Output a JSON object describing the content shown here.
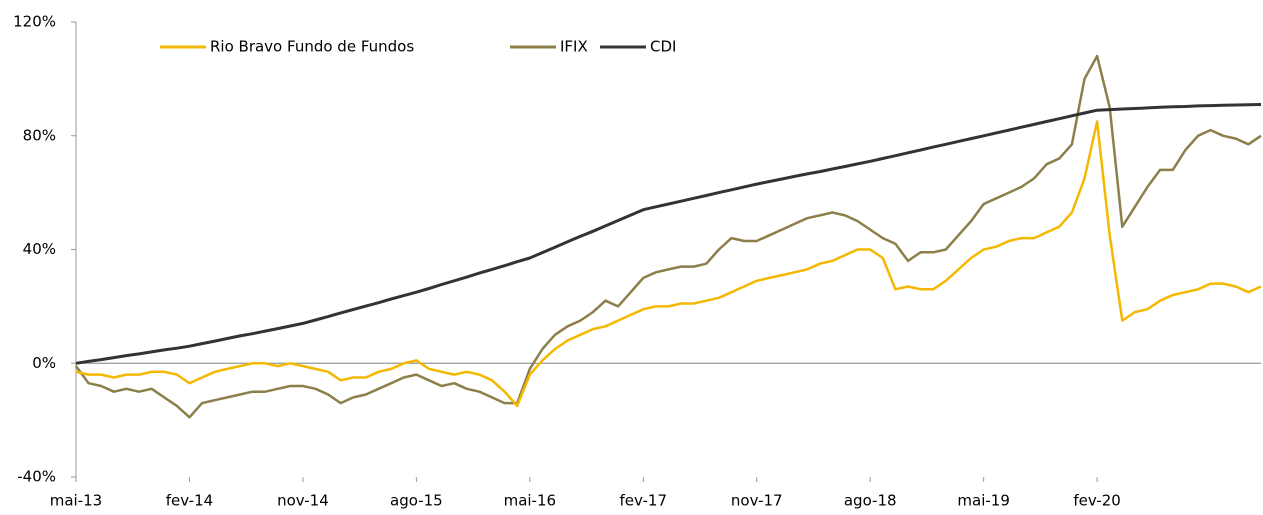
{
  "chart_data": {
    "type": "line",
    "categories": [
      "mai-13",
      null,
      null,
      null,
      null,
      null,
      null,
      null,
      null,
      "fev-14",
      null,
      null,
      null,
      null,
      null,
      null,
      null,
      null,
      "nov-14",
      null,
      null,
      null,
      null,
      null,
      null,
      null,
      null,
      "ago-15",
      null,
      null,
      null,
      null,
      null,
      null,
      null,
      null,
      "mai-16",
      null,
      null,
      null,
      null,
      null,
      null,
      null,
      null,
      "fev-17",
      null,
      null,
      null,
      null,
      null,
      null,
      null,
      null,
      "nov-17",
      null,
      null,
      null,
      null,
      null,
      null,
      null,
      null,
      "ago-18",
      null,
      null,
      null,
      null,
      null,
      null,
      null,
      null,
      "mai-19",
      null,
      null,
      null,
      null,
      null,
      null,
      null,
      null,
      "fev-20",
      null,
      null,
      null,
      null,
      null,
      null,
      null,
      null,
      null,
      null,
      null,
      null,
      null
    ],
    "series": [
      {
        "name": "Rio Bravo Fundo de Fundos",
        "color": "#f5b800",
        "values": [
          -3,
          -4,
          -4,
          -5,
          -4,
          -4,
          -3,
          -3,
          -4,
          -7,
          -5,
          -3,
          -2,
          -1,
          0,
          0,
          -1,
          0,
          -1,
          -2,
          -3,
          -6,
          -5,
          -5,
          -3,
          -2,
          0,
          1,
          -2,
          -3,
          -4,
          -3,
          -4,
          -6,
          -10,
          -15,
          -4,
          1,
          5,
          8,
          10,
          12,
          13,
          15,
          17,
          19,
          20,
          20,
          21,
          21,
          22,
          23,
          25,
          27,
          29,
          30,
          31,
          32,
          33,
          35,
          36,
          38,
          40,
          40,
          37,
          26,
          27,
          26,
          26,
          29,
          33,
          37,
          40,
          41,
          43,
          44,
          44,
          46,
          48,
          53,
          65,
          85,
          45,
          15,
          18,
          19,
          22,
          24,
          25,
          26,
          28,
          28,
          27,
          25,
          27
        ]
      },
      {
        "name": "IFIX",
        "color": "#8c7f4a",
        "values": [
          -1,
          -7,
          -8,
          -10,
          -9,
          -10,
          -9,
          -12,
          -15,
          -19,
          -14,
          -13,
          -12,
          -11,
          -10,
          -10,
          -9,
          -8,
          -8,
          -9,
          -11,
          -14,
          -12,
          -11,
          -9,
          -7,
          -5,
          -4,
          -6,
          -8,
          -7,
          -9,
          -10,
          -12,
          -14,
          -14,
          -2,
          5,
          10,
          13,
          15,
          18,
          22,
          20,
          25,
          30,
          32,
          33,
          34,
          34,
          35,
          40,
          44,
          43,
          43,
          45,
          47,
          49,
          51,
          52,
          53,
          52,
          50,
          47,
          44,
          42,
          36,
          39,
          39,
          40,
          45,
          50,
          56,
          58,
          60,
          62,
          65,
          70,
          72,
          77,
          100,
          108,
          90,
          48,
          55,
          62,
          68,
          68,
          75,
          80,
          82,
          80,
          79,
          77,
          80
        ]
      },
      {
        "name": "CDI",
        "color": "#333333",
        "values": [
          0,
          0.7,
          1.3,
          2,
          2.7,
          3.3,
          4,
          4.7,
          5.3,
          6,
          6.9,
          7.8,
          8.7,
          9.6,
          10.4,
          11.3,
          12.2,
          13.1,
          14,
          15.2,
          16.4,
          17.7,
          18.9,
          20.1,
          21.3,
          22.6,
          23.8,
          25,
          26.3,
          27.7,
          29,
          30.3,
          31.7,
          33,
          34.3,
          35.7,
          37,
          38.9,
          40.8,
          42.7,
          44.6,
          46.4,
          48.3,
          50.2,
          52.1,
          54,
          55,
          56,
          57,
          58,
          59,
          60,
          61,
          62,
          63,
          63.9,
          64.8,
          65.7,
          66.6,
          67.4,
          68.3,
          69.2,
          70.1,
          71,
          72,
          73,
          74,
          75,
          76,
          77,
          78,
          79,
          80,
          81,
          82,
          83,
          84,
          85,
          86,
          87,
          88,
          89,
          89.2,
          89.4,
          89.6,
          89.8,
          90,
          90.2,
          90.3,
          90.5,
          90.6,
          90.7,
          90.8,
          90.9,
          91
        ]
      }
    ],
    "ylim": [
      -40,
      120
    ],
    "yticks": [
      {
        "value": -40,
        "label": "-40%"
      },
      {
        "value": 0,
        "label": "0%"
      },
      {
        "value": 40,
        "label": "40%"
      },
      {
        "value": 80,
        "label": "80%"
      },
      {
        "value": 120,
        "label": "120%"
      }
    ],
    "grid": false,
    "legend": "top"
  }
}
